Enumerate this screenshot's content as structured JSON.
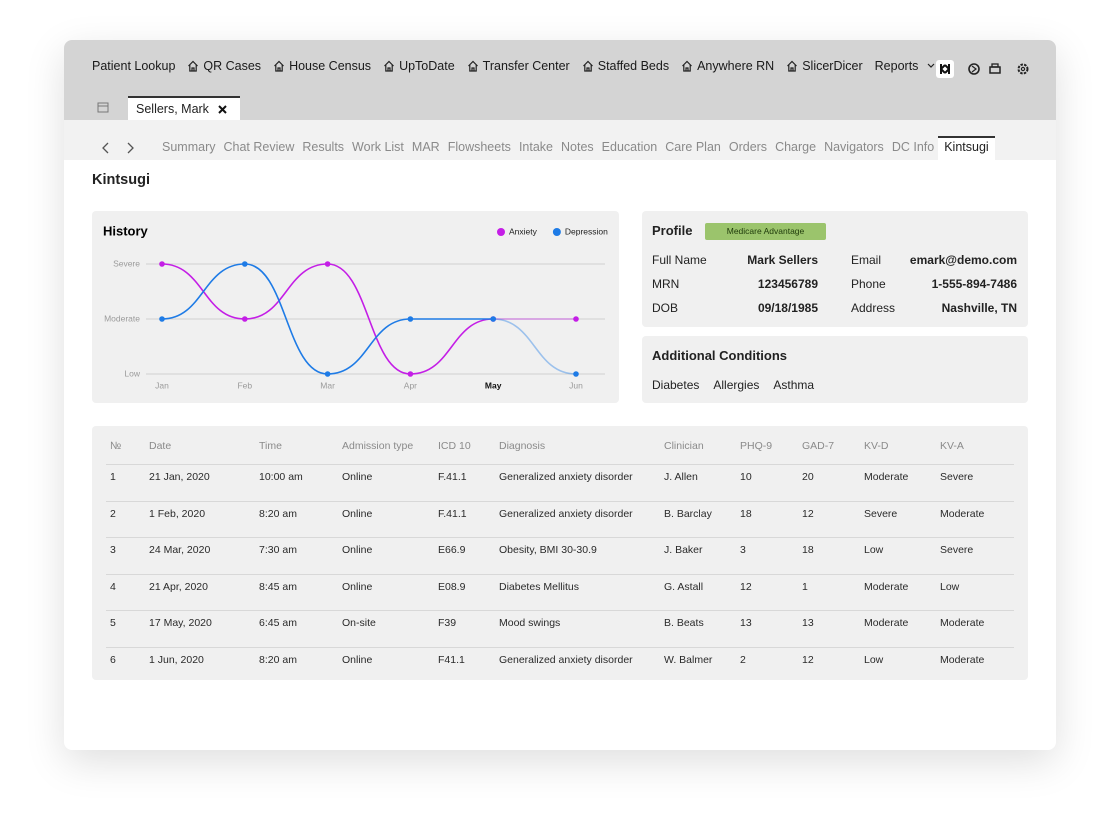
{
  "nav": {
    "items": [
      "Patient Lookup",
      "QR Cases",
      "House Census",
      "UpToDate",
      "Transfer Center",
      "Staffed Beds",
      "Anywhere RN",
      "SlicerDicer",
      "Reports"
    ]
  },
  "patient_tab": "Sellers, Mark",
  "tabs": {
    "items": [
      "Summary",
      "Chat Review",
      "Results",
      "Work List",
      "MAR",
      "Flowsheets",
      "Intake",
      "Notes",
      "Education",
      "Care Plan",
      "Orders",
      "Charge",
      "Navigators",
      "DC Info",
      "Kintsugi"
    ],
    "active": 14
  },
  "page_title": "Kintsugi",
  "history": {
    "type": "line",
    "title": "History",
    "categories": [
      "Jan",
      "Feb",
      "Mar",
      "Apr",
      "May",
      "Jun"
    ],
    "highlight": 4,
    "series": [
      {
        "name": "Anxiety",
        "color": "#c41ee6",
        "values": [
          3,
          2,
          3,
          1,
          2,
          2
        ]
      },
      {
        "name": "Depression",
        "color": "#1e7be6",
        "values": [
          2,
          3,
          1,
          2,
          2,
          1
        ]
      }
    ],
    "ylim": [
      1,
      3
    ],
    "yticks": [
      {
        "value": 1,
        "label": "Low"
      },
      {
        "value": 2,
        "label": "Moderate"
      },
      {
        "value": 3,
        "label": "Severe"
      }
    ],
    "grid": true
  },
  "profile": {
    "title": "Profile",
    "badge": "Medicare Advantage",
    "fields": [
      {
        "label": "Full Name",
        "value": "Mark Sellers"
      },
      {
        "label": "Email",
        "value": "emark@demo.com"
      },
      {
        "label": "MRN",
        "value": "123456789"
      },
      {
        "label": "Phone",
        "value": "1-555-894-7486"
      },
      {
        "label": "DOB",
        "value": "09/18/1985"
      },
      {
        "label": "Address",
        "value": "Nashville, TN"
      }
    ]
  },
  "conditions": {
    "title": "Additional Conditions",
    "items": [
      "Diabetes",
      "Allergies",
      "Asthma"
    ]
  },
  "table": {
    "columns": [
      "№",
      "Date",
      "Time",
      "Admission type",
      "ICD 10",
      "Diagnosis",
      "Clinician",
      "PHQ-9",
      "GAD-7",
      "KV-D",
      "KV-A"
    ],
    "rows": [
      [
        1,
        "21 Jan, 2020",
        "10:00 am",
        "Online",
        "F.41.1",
        "Generalized anxiety disorder",
        "J. Allen",
        10,
        20,
        "Moderate",
        "Severe"
      ],
      [
        2,
        "1 Feb, 2020",
        "8:20 am",
        "Online",
        "F.41.1",
        "Generalized anxiety disorder",
        "B. Barclay",
        18,
        12,
        "Severe",
        "Moderate"
      ],
      [
        3,
        "24 Mar, 2020",
        "7:30 am",
        "Online",
        "E66.9",
        "Obesity, BMI 30-30.9",
        "J. Baker",
        3,
        18,
        "Low",
        "Severe"
      ],
      [
        4,
        "21 Apr, 2020",
        "8:45 am",
        "Online",
        "E08.9",
        "Diabetes Mellitus",
        "G. Astall",
        12,
        1,
        "Moderate",
        "Low"
      ],
      [
        5,
        "17 May, 2020",
        "6:45 am",
        "On-site",
        "F39",
        "Mood swings",
        "B. Beats",
        13,
        13,
        "Moderate",
        "Moderate"
      ],
      [
        6,
        "1 Jun, 2020",
        "8:20 am",
        "Online",
        "F41.1",
        "Generalized anxiety disorder",
        "W. Balmer",
        2,
        12,
        "Low",
        "Moderate"
      ]
    ]
  }
}
